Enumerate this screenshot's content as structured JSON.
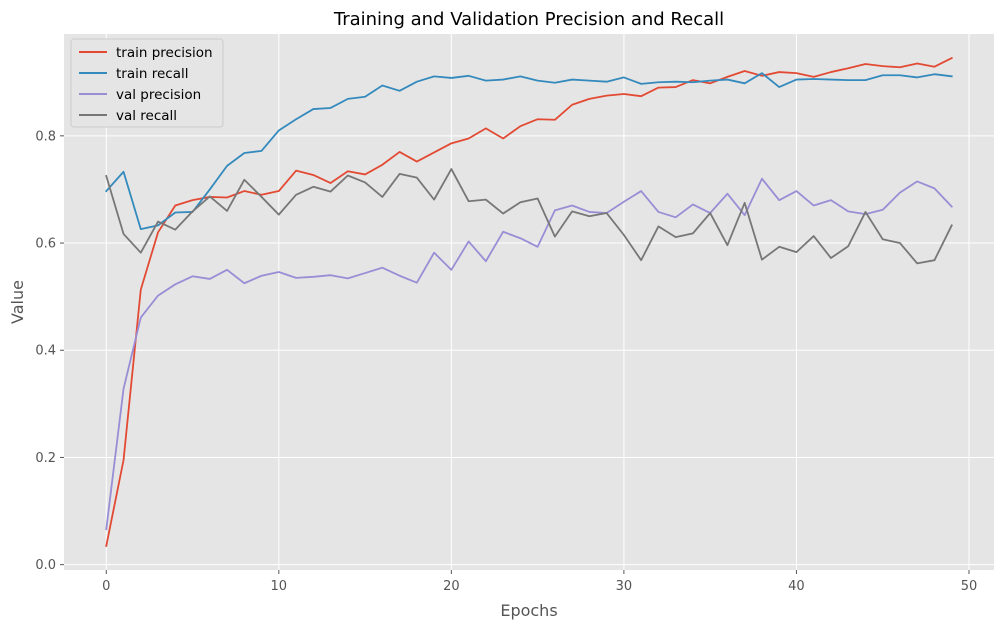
{
  "chart_data": {
    "type": "line",
    "title": "Training and Validation Precision and Recall",
    "xlabel": "Epochs",
    "ylabel": "Value",
    "xlim": [
      -2.45,
      51.45
    ],
    "ylim": [
      -0.01,
      0.99
    ],
    "xticks": [
      0,
      10,
      20,
      30,
      40,
      50
    ],
    "yticks": [
      0.0,
      0.2,
      0.4,
      0.6,
      0.8
    ],
    "grid": true,
    "legend_position": "top-left",
    "x": [
      0,
      1,
      2,
      3,
      4,
      5,
      6,
      7,
      8,
      9,
      10,
      11,
      12,
      13,
      14,
      15,
      16,
      17,
      18,
      19,
      20,
      21,
      22,
      23,
      24,
      25,
      26,
      27,
      28,
      29,
      30,
      31,
      32,
      33,
      34,
      35,
      36,
      37,
      38,
      39,
      40,
      41,
      42,
      43,
      44,
      45,
      46,
      47,
      48,
      49
    ],
    "series": [
      {
        "name": "train precision",
        "color": "#E24A33",
        "values": [
          0.035,
          0.195,
          0.513,
          0.62,
          0.67,
          0.68,
          0.686,
          0.685,
          0.697,
          0.69,
          0.697,
          0.735,
          0.727,
          0.712,
          0.734,
          0.728,
          0.746,
          0.77,
          0.752,
          0.769,
          0.786,
          0.795,
          0.814,
          0.795,
          0.818,
          0.831,
          0.83,
          0.858,
          0.869,
          0.875,
          0.878,
          0.874,
          0.89,
          0.891,
          0.904,
          0.898,
          0.91,
          0.921,
          0.912,
          0.919,
          0.917,
          0.91,
          0.919,
          0.926,
          0.934,
          0.93,
          0.928,
          0.935,
          0.929,
          0.945
        ]
      },
      {
        "name": "train recall",
        "color": "#348ABD",
        "values": [
          0.697,
          0.733,
          0.626,
          0.633,
          0.657,
          0.658,
          0.7,
          0.744,
          0.768,
          0.772,
          0.81,
          0.831,
          0.85,
          0.852,
          0.869,
          0.873,
          0.894,
          0.884,
          0.901,
          0.911,
          0.908,
          0.912,
          0.903,
          0.905,
          0.911,
          0.903,
          0.899,
          0.905,
          0.903,
          0.901,
          0.909,
          0.897,
          0.9,
          0.901,
          0.9,
          0.903,
          0.905,
          0.898,
          0.917,
          0.891,
          0.905,
          0.906,
          0.905,
          0.904,
          0.904,
          0.913,
          0.913,
          0.909,
          0.915,
          0.911
        ]
      },
      {
        "name": "val precision",
        "color": "#988ED5",
        "values": [
          0.066,
          0.328,
          0.461,
          0.502,
          0.523,
          0.538,
          0.533,
          0.55,
          0.525,
          0.539,
          0.546,
          0.535,
          0.537,
          0.54,
          0.534,
          0.544,
          0.554,
          0.539,
          0.526,
          0.582,
          0.55,
          0.603,
          0.566,
          0.621,
          0.609,
          0.593,
          0.661,
          0.67,
          0.658,
          0.656,
          0.677,
          0.697,
          0.658,
          0.648,
          0.672,
          0.656,
          0.692,
          0.652,
          0.72,
          0.68,
          0.697,
          0.67,
          0.68,
          0.659,
          0.654,
          0.662,
          0.694,
          0.715,
          0.702,
          0.668
        ]
      },
      {
        "name": "val recall",
        "color": "#777777",
        "values": [
          0.725,
          0.617,
          0.582,
          0.64,
          0.625,
          0.659,
          0.687,
          0.66,
          0.718,
          0.686,
          0.653,
          0.69,
          0.705,
          0.696,
          0.726,
          0.713,
          0.686,
          0.729,
          0.722,
          0.681,
          0.738,
          0.678,
          0.681,
          0.655,
          0.676,
          0.683,
          0.612,
          0.659,
          0.65,
          0.656,
          0.615,
          0.568,
          0.631,
          0.611,
          0.618,
          0.656,
          0.596,
          0.675,
          0.569,
          0.593,
          0.583,
          0.613,
          0.572,
          0.594,
          0.658,
          0.607,
          0.6,
          0.562,
          0.568,
          0.633
        ]
      }
    ]
  }
}
